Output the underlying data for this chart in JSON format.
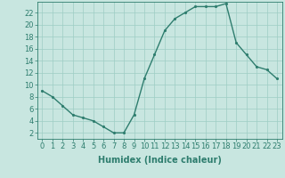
{
  "x": [
    0,
    1,
    2,
    3,
    4,
    5,
    6,
    7,
    8,
    9,
    10,
    11,
    12,
    13,
    14,
    15,
    16,
    17,
    18,
    19,
    20,
    21,
    22,
    23
  ],
  "y": [
    9,
    8,
    6.5,
    5,
    4.5,
    4,
    3,
    2,
    2,
    5,
    11,
    15,
    19,
    21,
    22,
    23,
    23,
    23,
    23.5,
    17,
    15,
    13,
    12.5,
    11
  ],
  "line_color": "#2e7d6e",
  "marker_color": "#2e7d6e",
  "bg_color": "#c8e6e0",
  "grid_color": "#9ecdc4",
  "xlabel": "Humidex (Indice chaleur)",
  "xlim": [
    -0.5,
    23.5
  ],
  "ylim": [
    1,
    23.8
  ],
  "yticks": [
    2,
    4,
    6,
    8,
    10,
    12,
    14,
    16,
    18,
    20,
    22
  ],
  "xticks": [
    0,
    1,
    2,
    3,
    4,
    5,
    6,
    7,
    8,
    9,
    10,
    11,
    12,
    13,
    14,
    15,
    16,
    17,
    18,
    19,
    20,
    21,
    22,
    23
  ],
  "axis_color": "#2e7d6e",
  "font_size_label": 7,
  "font_size_tick": 6,
  "line_width": 1.0,
  "marker_size": 2.5
}
